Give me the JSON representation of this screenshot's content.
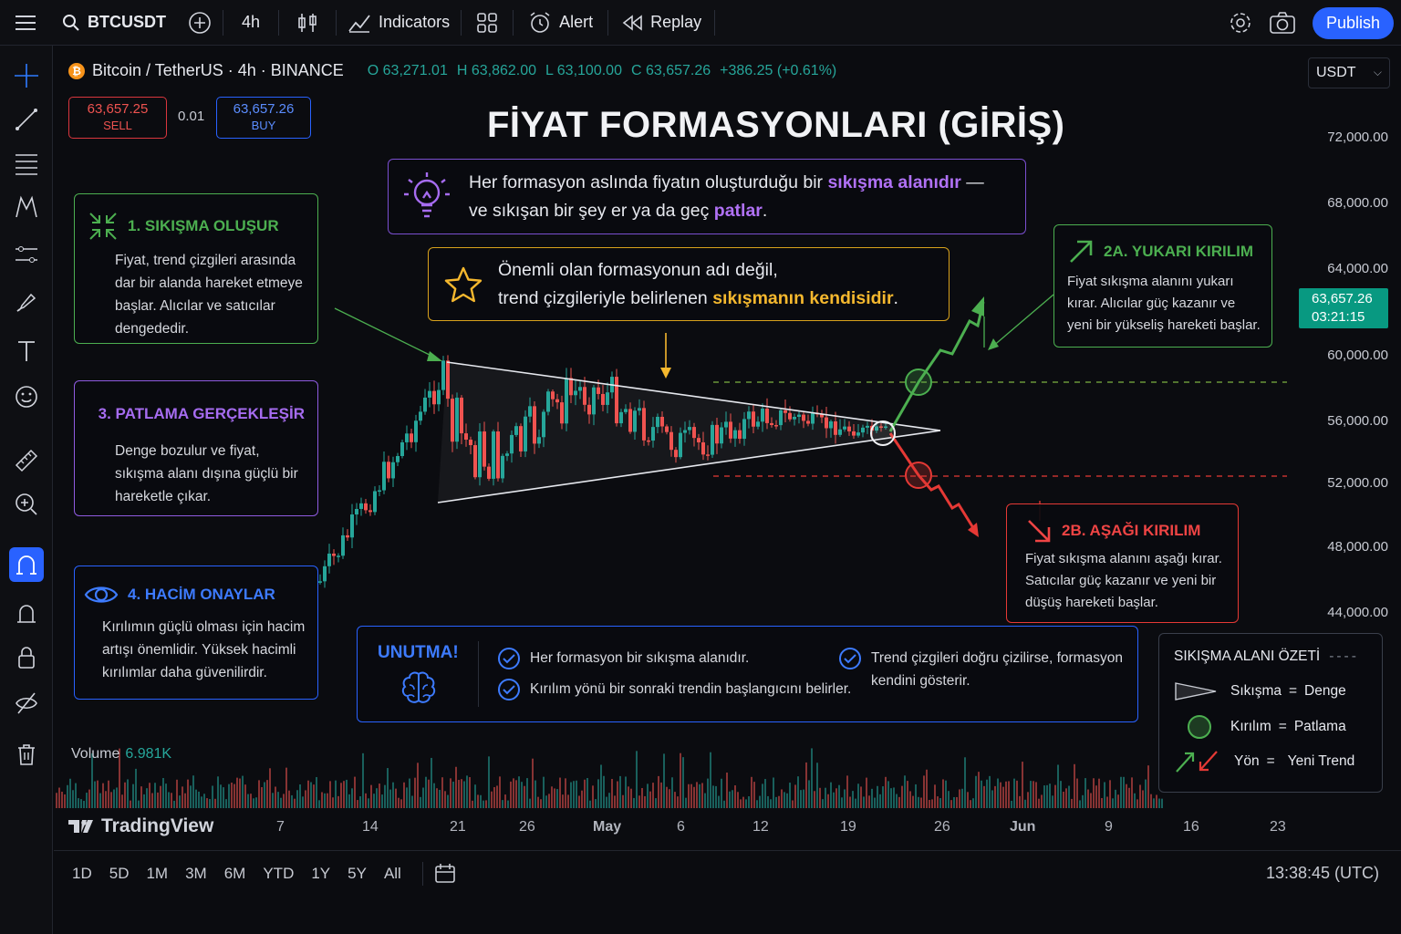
{
  "topbar": {
    "symbol": "BTCUSDT",
    "interval": "4h",
    "indicators": "Indicators",
    "alert": "Alert",
    "replay": "Replay",
    "publish": "Publish"
  },
  "legend": {
    "symbol_desc": "Bitcoin / TetherUS · 4h · BINANCE",
    "open": "O 63,271.01",
    "high": "H 63,862.00",
    "low": "L 63,100.00",
    "close": "C 63,657.26",
    "change": "+386.25 (+0.61%)"
  },
  "trade": {
    "sell_price": "63,657.25",
    "sell_label": "SELL",
    "qty": "0.01",
    "buy_price": "63,657.26",
    "buy_label": "BUY"
  },
  "currency": "USDT",
  "price_axis": [
    "72,000.00",
    "68,000.00",
    "64,000.00",
    "60,000.00",
    "56,000.00",
    "52,000.00",
    "48,000.00",
    "44,000.00"
  ],
  "last_price": {
    "price": "63,657.26",
    "countdown": "03:21:15"
  },
  "title": "FİYAT FORMASYONLARI (GİRİŞ)",
  "info1": {
    "pre": "Her formasyon aslında fiyatın oluşturduğu bir ",
    "hl1": "sıkışma alanıdır",
    "mid": " —",
    "line2": "ve sıkışan bir şey er ya da geç ",
    "hl2": "patlar",
    "end": "."
  },
  "info2": {
    "line1": "Önemli olan formasyonun adı değil,",
    "line2": "trend çizgileriyle belirlenen ",
    "hl": "sıkışmanın kendisidir",
    "end": "."
  },
  "step1": {
    "title": "1. SIKIŞMA OLUŞUR",
    "body": "Fiyat, trend çizgileri arasında dar bir alanda hareket etmeye başlar. Alıcılar ve satıcılar dengededir."
  },
  "step3": {
    "title": "3. PATLAMA GERÇEKLEŞİR",
    "body": "Denge bozulur ve fiyat, sıkışma alanı dışına güçlü bir hareketle çıkar."
  },
  "step4": {
    "title": "4. HACİM ONAYLAR",
    "body": "Kırılımın güçlü olması için hacim artışı önemlidir. Yüksek hacimli kırılımlar daha güvenilirdir."
  },
  "up": {
    "title": "2A. YUKARI KIRILIM",
    "body": "Fiyat sıkışma alanını yukarı kırar. Alıcılar güç kazanır ve yeni bir yükseliş hareketi başlar."
  },
  "down": {
    "title": "2B. AŞAĞI KIRILIM",
    "body": "Fiyat sıkışma alanını aşağı kırar. Satıcılar güç kazanır ve yeni bir düşüş hareketi başlar."
  },
  "unutma": {
    "label": "UNUTMA!",
    "items": [
      "Her formasyon bir sıkışma alanıdır.",
      "Kırılım yönü bir sonraki trendin başlangıcını belirler.",
      "Trend çizgileri doğru çizilirse, formasyon kendini gösterir."
    ]
  },
  "summary": {
    "title": "SIKIŞMA ALANI ÖZETİ",
    "rows": [
      {
        "left": "Sıkışma",
        "eq": "=",
        "right": "Denge"
      },
      {
        "left": "Kırılım",
        "eq": "=",
        "right": "Patlama"
      },
      {
        "left": "Yön",
        "eq": "=",
        "right": "Yeni Trend"
      }
    ]
  },
  "volume": {
    "label": "Volume",
    "value": "6.981K"
  },
  "brand": "TradingView",
  "time_axis": [
    "7",
    "14",
    "21",
    "26",
    "May",
    "6",
    "12",
    "19",
    "26",
    "Jun",
    "9",
    "16",
    "23"
  ],
  "timeframes": [
    "1D",
    "5D",
    "1M",
    "3M",
    "6M",
    "YTD",
    "1Y",
    "5Y",
    "All"
  ],
  "clock": "13:38:45 (UTC)",
  "colors": {
    "up": "#26a69a",
    "down": "#ef5350",
    "accent": "#2962ff",
    "green": "#4caf50",
    "red": "#e53935",
    "purple": "#8f5be0",
    "gold": "#d8a21c"
  }
}
